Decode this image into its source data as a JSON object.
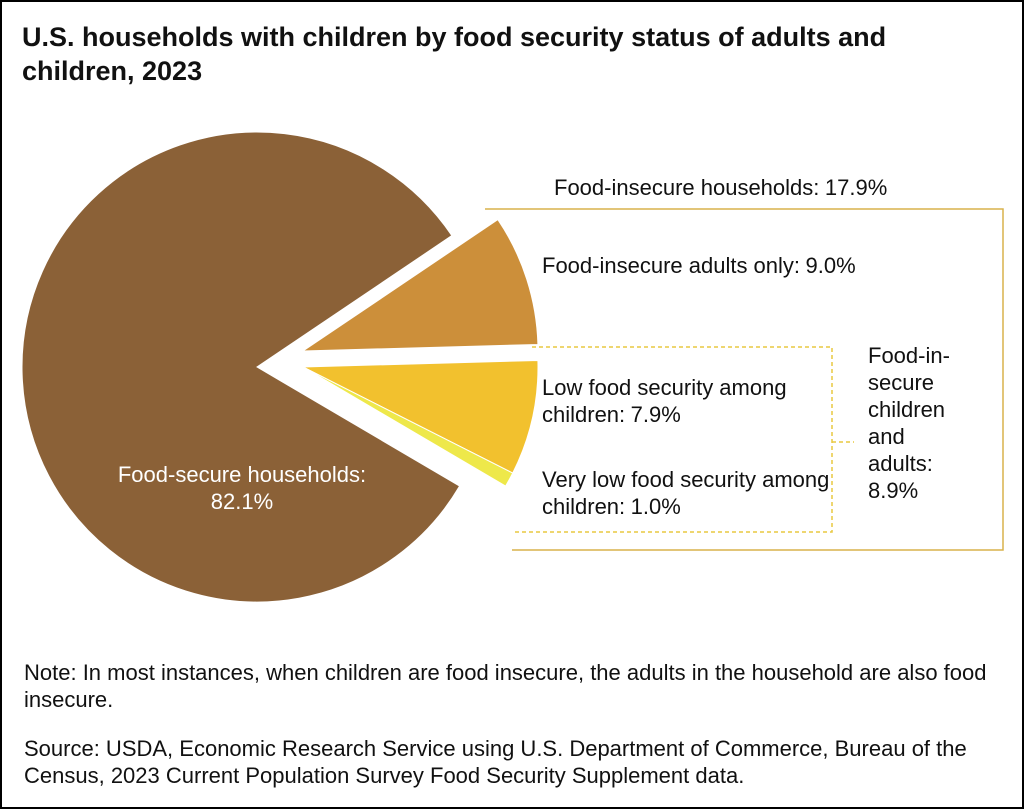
{
  "chart_data": {
    "type": "pie",
    "title": "U.S. households with children by food security status of adults and children, 2023",
    "categories": [
      "Food-secure households:",
      "Food-insecure adults only:",
      "Low food security among children:",
      "Very low food security among children:"
    ],
    "values": [
      82.1,
      9.0,
      7.9,
      1.0
    ],
    "value_labels": [
      "82.1%",
      "9.0%",
      "7.9%",
      "1.0%"
    ],
    "colors": [
      "#8b6137",
      "#cc8f3a",
      "#f2c12e",
      "#eee84a"
    ],
    "groups": [
      {
        "name": "Food-insecure households:",
        "value": 17.9,
        "value_label": "17.9%"
      },
      {
        "name": "Food-in-secure children and adults:",
        "value": 8.9,
        "value_label": "8.9%"
      }
    ],
    "note": "Note: In most instances, when children are food insecure, the adults in the household are also food insecure.",
    "source": "Source: USDA, Economic Research Service using U.S. Department of Commerce, Bureau of the Census, 2023 Current Population Survey Food Security Supplement data."
  }
}
